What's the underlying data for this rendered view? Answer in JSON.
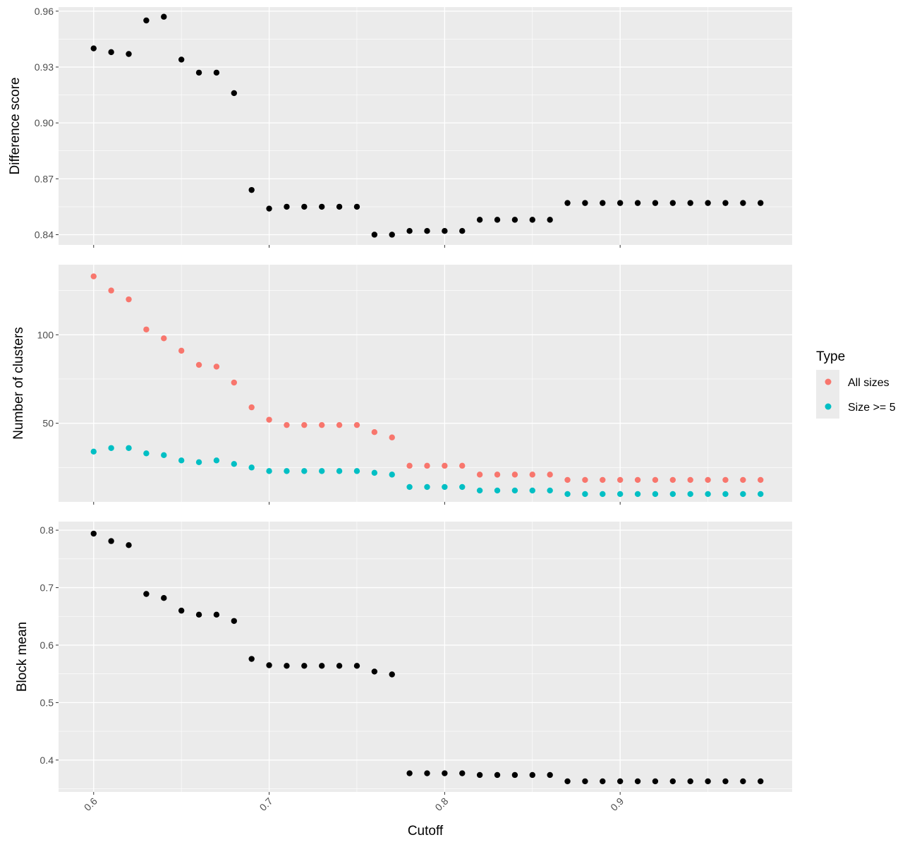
{
  "chart_data": {
    "type": "scatter",
    "x_axis": {
      "label": "Cutoff",
      "ticks": [
        0.6,
        0.7,
        0.8,
        0.9
      ],
      "tick_labels": [
        "0.6",
        "0.7",
        "0.8",
        "0.9"
      ],
      "range": [
        0.58,
        0.998
      ]
    },
    "x": [
      0.6,
      0.61,
      0.62,
      0.63,
      0.64,
      0.65,
      0.66,
      0.67,
      0.68,
      0.69,
      0.7,
      0.71,
      0.72,
      0.73,
      0.74,
      0.75,
      0.76,
      0.77,
      0.78,
      0.79,
      0.8,
      0.81,
      0.82,
      0.83,
      0.84,
      0.85,
      0.86,
      0.87,
      0.88,
      0.89,
      0.9,
      0.91,
      0.92,
      0.93,
      0.94,
      0.95,
      0.96,
      0.97,
      0.98
    ],
    "grid": true,
    "panels": [
      {
        "id": "difference",
        "ylabel": "Difference score",
        "ylim": [
          0.8345,
          0.9622
        ],
        "yticks": [
          0.84,
          0.87,
          0.9,
          0.93,
          0.96
        ],
        "ytick_labels": [
          "0.84",
          "0.87",
          "0.90",
          "0.93",
          "0.96"
        ],
        "series": [
          {
            "color": "#000000",
            "values": [
              0.94,
              0.938,
              0.937,
              0.955,
              0.957,
              0.934,
              0.927,
              0.927,
              0.916,
              0.864,
              0.854,
              0.855,
              0.855,
              0.855,
              0.855,
              0.855,
              0.84,
              0.84,
              0.842,
              0.842,
              0.842,
              0.842,
              0.848,
              0.848,
              0.848,
              0.848,
              0.848,
              0.857,
              0.857,
              0.857,
              0.857,
              0.857,
              0.857,
              0.857,
              0.857,
              0.857,
              0.857,
              0.857,
              0.857
            ]
          }
        ]
      },
      {
        "id": "clusters",
        "ylabel": "Number of clusters",
        "ylim": [
          5.6,
          139.6
        ],
        "yticks": [
          50,
          100
        ],
        "ytick_labels": [
          "50",
          "100"
        ],
        "series": [
          {
            "name": "All sizes",
            "color": "#F8766D",
            "values": [
              133,
              125,
              120,
              103,
              98,
              91,
              83,
              82,
              73,
              59,
              52,
              49,
              49,
              49,
              49,
              49,
              45,
              42,
              26,
              26,
              26,
              26,
              21,
              21,
              21,
              21,
              21,
              18,
              18,
              18,
              18,
              18,
              18,
              18,
              18,
              18,
              18,
              18,
              18
            ]
          },
          {
            "name": "Size >= 5",
            "color": "#00BFC4",
            "values": [
              34,
              36,
              36,
              33,
              32,
              29,
              28,
              29,
              27,
              25,
              23,
              23,
              23,
              23,
              23,
              23,
              22,
              21,
              14,
              14,
              14,
              14,
              12,
              12,
              12,
              12,
              12,
              10,
              10,
              10,
              10,
              10,
              10,
              10,
              10,
              10,
              10,
              10,
              10
            ]
          }
        ]
      },
      {
        "id": "blockmean",
        "ylabel": "Block mean",
        "ylim": [
          0.3445,
          0.8149
        ],
        "yticks": [
          0.4,
          0.5,
          0.6,
          0.7,
          0.8
        ],
        "ytick_labels": [
          "0.4",
          "0.5",
          "0.6",
          "0.7",
          "0.8"
        ],
        "series": [
          {
            "color": "#000000",
            "values": [
              0.794,
              0.781,
              0.774,
              0.689,
              0.682,
              0.66,
              0.653,
              0.653,
              0.642,
              0.576,
              0.565,
              0.564,
              0.564,
              0.564,
              0.564,
              0.564,
              0.554,
              0.549,
              0.377,
              0.377,
              0.377,
              0.377,
              0.374,
              0.374,
              0.374,
              0.374,
              0.374,
              0.363,
              0.363,
              0.363,
              0.363,
              0.363,
              0.363,
              0.363,
              0.363,
              0.363,
              0.363,
              0.363,
              0.363
            ]
          }
        ]
      }
    ],
    "legend": {
      "title": "Type",
      "placement": "right",
      "entries": [
        {
          "label": "All sizes",
          "color": "#F8766D"
        },
        {
          "label": "Size >= 5",
          "color": "#00BFC4"
        }
      ]
    },
    "colors": {
      "panel_background": "#EBEBEB",
      "grid_line": "#FFFFFF"
    }
  }
}
